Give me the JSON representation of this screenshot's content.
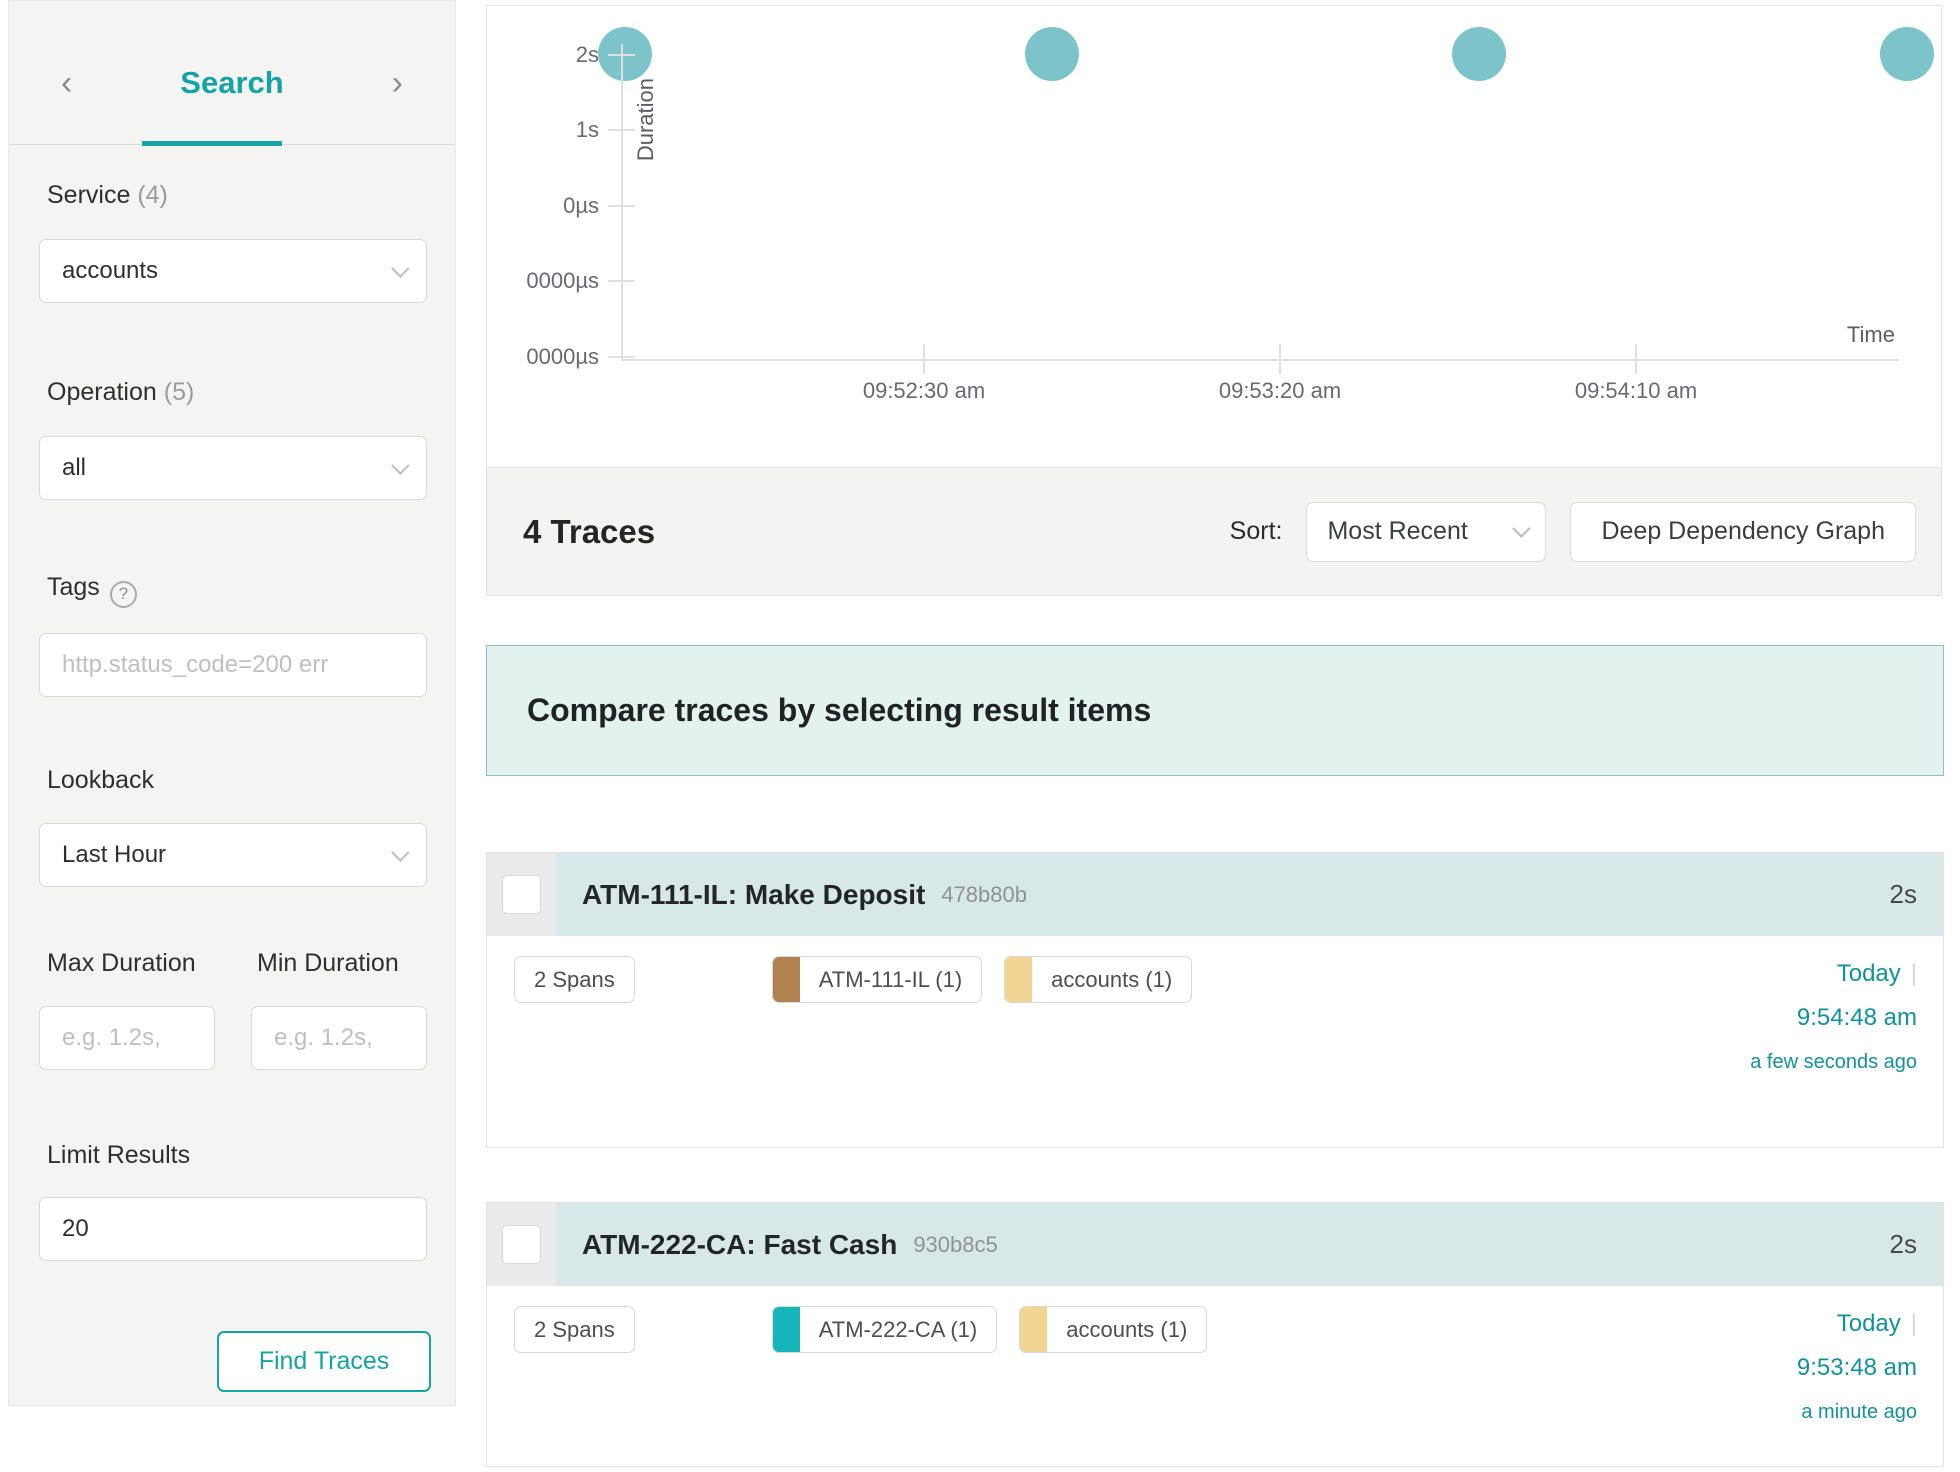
{
  "sidebar": {
    "nav": {
      "prev_icon": "‹",
      "next_icon": "›",
      "title": "Search"
    },
    "service": {
      "label": "Service ",
      "count": "(4)",
      "value": "accounts"
    },
    "operation": {
      "label": "Operation ",
      "count": "(5)",
      "value": "all"
    },
    "tags": {
      "label": "Tags",
      "help_icon": "?",
      "placeholder": "http.status_code=200 err"
    },
    "lookback": {
      "label": "Lookback",
      "value": "Last Hour"
    },
    "max_duration": {
      "label": "Max Duration",
      "placeholder": "e.g. 1.2s,"
    },
    "min_duration": {
      "label": "Min Duration",
      "placeholder": "e.g. 1.2s,"
    },
    "limit": {
      "label": "Limit Results",
      "value": "20"
    },
    "find_button": "Find Traces"
  },
  "results_header": {
    "count_label": "4 Traces",
    "sort_label": "Sort:",
    "sort_value": "Most Recent",
    "ddg_button": "Deep Dependency Graph"
  },
  "banner": {
    "text": "Compare traces by selecting result items"
  },
  "traces": [
    {
      "title": "ATM-111-IL: Make Deposit",
      "trace_id": "478b80b",
      "duration": "2s",
      "spans": "2 Spans",
      "services": [
        {
          "name": "ATM-111-IL (1)",
          "color": "#b0824f"
        },
        {
          "name": "accounts (1)",
          "color": "#f2d592"
        }
      ],
      "date": "Today",
      "separator": "|",
      "time": "9:54:48 am",
      "relative": "a few seconds ago"
    },
    {
      "title": "ATM-222-CA: Fast Cash",
      "trace_id": "930b8c5",
      "duration": "2s",
      "spans": "2 Spans",
      "services": [
        {
          "name": "ATM-222-CA (1)",
          "color": "#16b5b9"
        },
        {
          "name": "accounts (1)",
          "color": "#f2d592"
        }
      ],
      "date": "Today",
      "separator": "|",
      "time": "9:53:48 am",
      "relative": "a minute ago"
    }
  ],
  "chart_data": {
    "type": "scatter",
    "title": "",
    "xlabel": "Time",
    "ylabel": "Duration",
    "x_ticks": [
      "09:52:30 am",
      "09:53:20 am",
      "09:54:10 am"
    ],
    "y_ticks_bottom_to_top": [
      "0000µs",
      "0000µs",
      "0µs",
      "1s",
      "2s"
    ],
    "ylim_note": "duration axis, 2s at top",
    "grid": false,
    "point_color": "#7cc3ca",
    "points": [
      {
        "time": "09:51:48 am",
        "duration_s": 2
      },
      {
        "time": "09:52:48 am",
        "duration_s": 2
      },
      {
        "time": "09:53:48 am",
        "duration_s": 2
      },
      {
        "time": "09:54:48 am",
        "duration_s": 2
      }
    ]
  },
  "colors": {
    "accent": "#16a3a3",
    "link_teal": "#12929b",
    "trace_header_bg": "#d8e8e9",
    "banner_bg": "#e3f1ef",
    "banner_border": "#84c5bf"
  }
}
